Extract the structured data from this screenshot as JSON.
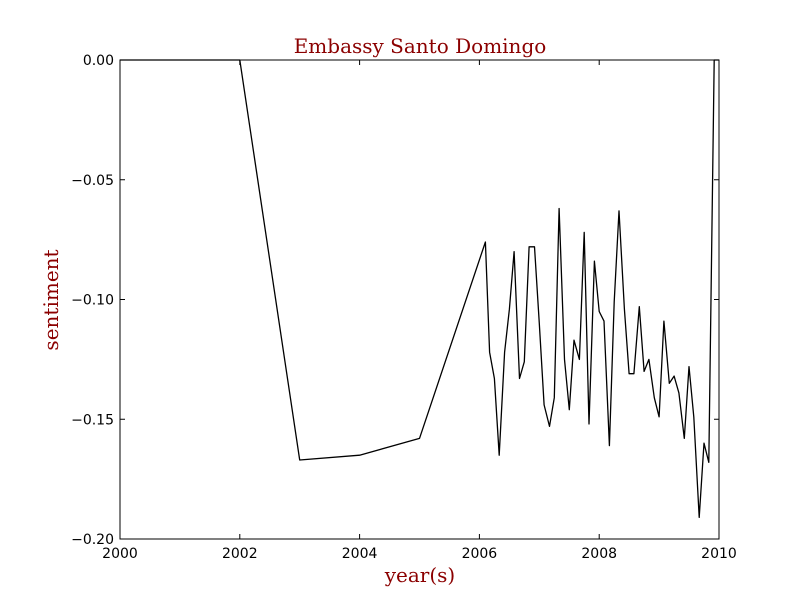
{
  "chart_data": {
    "type": "line",
    "title": "Embassy Santo Domingo",
    "xlabel": "year(s)",
    "ylabel": "sentiment",
    "xlim": [
      2000,
      2010
    ],
    "ylim": [
      -0.2,
      0.0
    ],
    "xticks": [
      2000,
      2002,
      2004,
      2006,
      2008,
      2010
    ],
    "xtick_labels": [
      "2000",
      "2002",
      "2004",
      "2006",
      "2008",
      "2010"
    ],
    "yticks": [
      0.0,
      -0.05,
      -0.1,
      -0.15,
      -0.2
    ],
    "ytick_labels": [
      "0.00",
      "−0.05",
      "−0.10",
      "−0.15",
      "−0.20"
    ],
    "grid": false,
    "colors": {
      "title": "#8b0000",
      "labels": "#8b0000",
      "line": "#000000"
    },
    "series": [
      {
        "x": [
          2000.0,
          2002.0,
          2003.0,
          2004.0,
          2005.0,
          2006.1,
          2006.17,
          2006.25,
          2006.33,
          2006.42,
          2006.5,
          2006.58,
          2006.67,
          2006.75,
          2006.83,
          2006.92,
          2007.0,
          2007.08,
          2007.17,
          2007.25,
          2007.33,
          2007.42,
          2007.5,
          2007.58,
          2007.67,
          2007.75,
          2007.83,
          2007.92,
          2008.0,
          2008.08,
          2008.17,
          2008.25,
          2008.33,
          2008.42,
          2008.5,
          2008.58,
          2008.67,
          2008.75,
          2008.83,
          2008.92,
          2009.0,
          2009.08,
          2009.17,
          2009.25,
          2009.33,
          2009.42,
          2009.5,
          2009.58,
          2009.67,
          2009.75,
          2009.83,
          2009.92,
          2010.0
        ],
        "y": [
          0.0,
          0.0,
          -0.167,
          -0.165,
          -0.158,
          -0.076,
          -0.122,
          -0.133,
          -0.165,
          -0.122,
          -0.104,
          -0.08,
          -0.133,
          -0.126,
          -0.078,
          -0.078,
          -0.11,
          -0.144,
          -0.153,
          -0.141,
          -0.062,
          -0.125,
          -0.146,
          -0.117,
          -0.125,
          -0.072,
          -0.152,
          -0.084,
          -0.105,
          -0.109,
          -0.161,
          -0.101,
          -0.063,
          -0.104,
          -0.131,
          -0.131,
          -0.103,
          -0.13,
          -0.125,
          -0.141,
          -0.149,
          -0.109,
          -0.135,
          -0.132,
          -0.139,
          -0.158,
          -0.128,
          -0.149,
          -0.191,
          -0.16,
          -0.168,
          0.0,
          0.0
        ]
      }
    ]
  }
}
